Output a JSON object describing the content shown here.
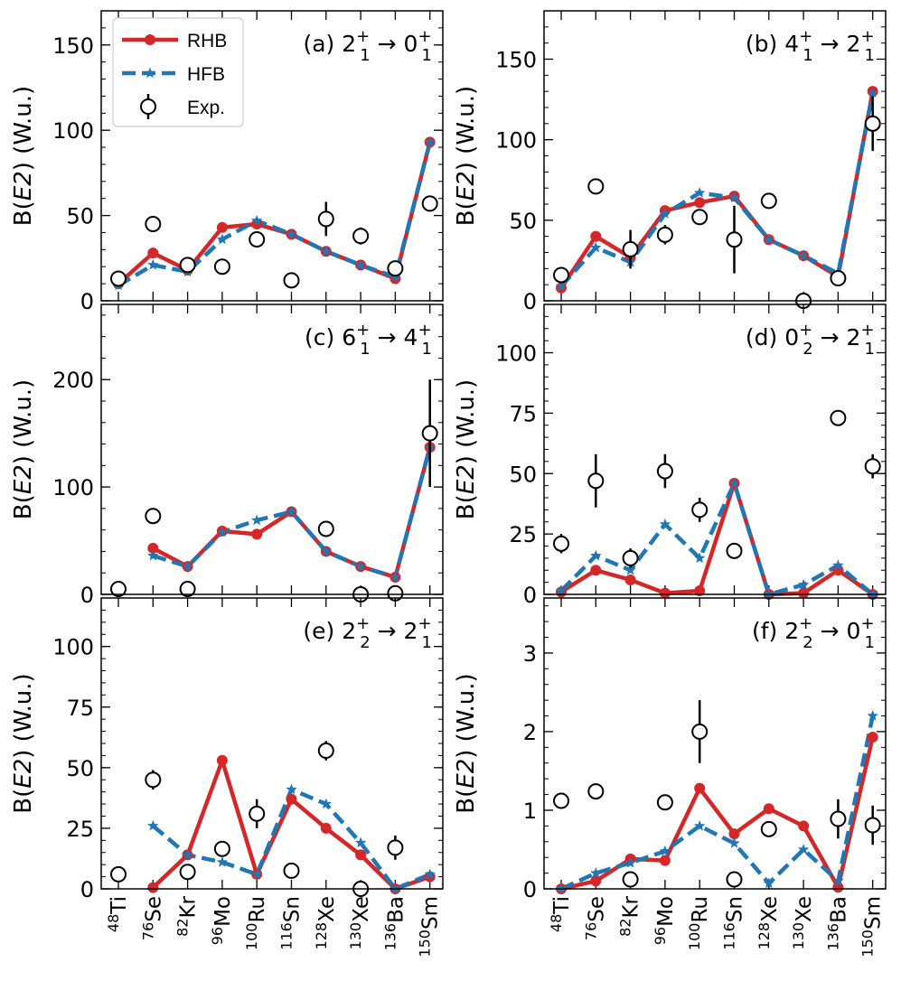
{
  "colors": {
    "rhb": "#d62728",
    "hfb": "#1f77b4",
    "exp": "#000000"
  },
  "legend": {
    "rhb": "RHB",
    "hfb": "HFB",
    "exp": "Exp."
  },
  "nuclei": [
    {
      "mass": "48",
      "symbol": "Ti"
    },
    {
      "mass": "76",
      "symbol": "Se"
    },
    {
      "mass": "82",
      "symbol": "Kr"
    },
    {
      "mass": "96",
      "symbol": "Mo"
    },
    {
      "mass": "100",
      "symbol": "Ru"
    },
    {
      "mass": "116",
      "symbol": "Sn"
    },
    {
      "mass": "128",
      "symbol": "Xe"
    },
    {
      "mass": "130",
      "symbol": "Xe"
    },
    {
      "mass": "136",
      "symbol": "Ba"
    },
    {
      "mass": "150",
      "symbol": "Sm"
    }
  ],
  "ylabel": {
    "prefix": "B(",
    "italic": "E2",
    "suffix": ") (W.u.)"
  },
  "arrow": "→",
  "chart_data": [
    {
      "type": "line",
      "label": "(a)",
      "trans": {
        "j1": "2",
        "sub1": "1",
        "sup1": "+",
        "j2": "0",
        "sub2": "1",
        "sup2": "+"
      },
      "ylim": [
        0,
        170
      ],
      "yticks": [
        0,
        50,
        100,
        150
      ],
      "series": [
        {
          "name": "RHB",
          "values": [
            10,
            28,
            18,
            43,
            45,
            39,
            29,
            21,
            13,
            93
          ]
        },
        {
          "name": "HFB",
          "values": [
            9,
            21,
            17,
            36,
            47,
            39,
            29,
            21,
            14,
            93
          ]
        }
      ],
      "exp": {
        "values": [
          13,
          45,
          21,
          20,
          36,
          12,
          48,
          38,
          19,
          57
        ],
        "err": [
          2,
          3,
          2,
          2,
          2,
          2,
          10,
          5,
          2,
          2
        ]
      }
    },
    {
      "type": "line",
      "label": "(b)",
      "trans": {
        "j1": "4",
        "sub1": "1",
        "sup1": "+",
        "j2": "2",
        "sub2": "1",
        "sup2": "+"
      },
      "ylim": [
        0,
        180
      ],
      "yticks": [
        0,
        50,
        100,
        150
      ],
      "series": [
        {
          "name": "RHB",
          "values": [
            8,
            40,
            27,
            56,
            61,
            65,
            38,
            28,
            15,
            130
          ]
        },
        {
          "name": "HFB",
          "values": [
            9,
            33,
            24,
            54,
            67,
            64,
            38,
            28,
            17,
            129
          ]
        }
      ],
      "exp": {
        "values": [
          16,
          71,
          32,
          41,
          52,
          38,
          62,
          0,
          14,
          110
        ],
        "err": [
          2,
          2,
          12,
          6,
          3,
          21,
          2,
          1,
          3,
          17
        ]
      }
    },
    {
      "type": "line",
      "label": "(c)",
      "trans": {
        "j1": "6",
        "sub1": "1",
        "sup1": "+",
        "j2": "4",
        "sub2": "1",
        "sup2": "+"
      },
      "ylim": [
        0,
        270
      ],
      "yticks": [
        0,
        100,
        200
      ],
      "series": [
        {
          "name": "RHB",
          "values": [
            null,
            43,
            26,
            59,
            56,
            77,
            40,
            26,
            16,
            137
          ]
        },
        {
          "name": "HFB",
          "values": [
            null,
            36,
            26,
            58,
            69,
            77,
            40,
            26,
            16,
            137
          ]
        }
      ],
      "exp": {
        "values": [
          5,
          73,
          5,
          null,
          null,
          null,
          61,
          0,
          1,
          150
        ],
        "err": [
          1,
          4,
          1,
          null,
          null,
          null,
          4,
          1,
          1,
          50
        ]
      }
    },
    {
      "type": "line",
      "label": "(d)",
      "trans": {
        "j1": "0",
        "sub1": "2",
        "sup1": "+",
        "j2": "2",
        "sub2": "1",
        "sup2": "+"
      },
      "ylim": [
        0,
        120
      ],
      "yticks": [
        0,
        25,
        50,
        75,
        100
      ],
      "series": [
        {
          "name": "RHB",
          "values": [
            1,
            10,
            6,
            0.5,
            1.5,
            46,
            0,
            0.5,
            10,
            0
          ]
        },
        {
          "name": "HFB",
          "values": [
            1.5,
            16,
            10,
            29,
            15,
            46,
            0,
            4,
            12,
            0
          ]
        }
      ],
      "exp": {
        "values": [
          21,
          47,
          15,
          51,
          35,
          18,
          null,
          null,
          73,
          53
        ],
        "err": [
          4,
          11,
          4,
          7,
          5,
          2,
          null,
          null,
          2,
          5
        ]
      }
    },
    {
      "type": "line",
      "label": "(e)",
      "trans": {
        "j1": "2",
        "sub1": "2",
        "sup1": "+",
        "j2": "2",
        "sub2": "1",
        "sup2": "+"
      },
      "ylim": [
        0,
        120
      ],
      "yticks": [
        0,
        25,
        50,
        75,
        100
      ],
      "series": [
        {
          "name": "RHB",
          "values": [
            null,
            0.5,
            14,
            53,
            6,
            37,
            25,
            14,
            0,
            5
          ]
        },
        {
          "name": "HFB",
          "values": [
            null,
            26,
            14,
            11,
            6,
            41,
            35,
            19,
            0,
            6
          ]
        }
      ],
      "exp": {
        "values": [
          6,
          45,
          7,
          16.5,
          31,
          7.5,
          57,
          0,
          17,
          null
        ],
        "err": [
          1,
          4,
          1,
          2,
          6,
          1,
          4,
          1,
          5,
          null
        ]
      }
    },
    {
      "type": "line",
      "label": "(f)",
      "trans": {
        "j1": "2",
        "sub1": "2",
        "sup1": "+",
        "j2": "0",
        "sub2": "1",
        "sup2": "+"
      },
      "ylim": [
        0,
        3.7
      ],
      "yticks": [
        0,
        1,
        2,
        3
      ],
      "series": [
        {
          "name": "RHB",
          "values": [
            0,
            0.1,
            0.38,
            0.36,
            1.28,
            0.7,
            1.02,
            0.8,
            0.02,
            1.93
          ]
        },
        {
          "name": "HFB",
          "values": [
            0,
            0.2,
            0.33,
            0.48,
            0.8,
            0.58,
            0.07,
            0.5,
            0.1,
            2.2
          ]
        }
      ],
      "exp": {
        "values": [
          1.12,
          1.24,
          0.12,
          1.1,
          2.0,
          0.12,
          0.76,
          null,
          0.89,
          0.81
        ],
        "err": [
          0.05,
          0.1,
          0.03,
          0.05,
          0.4,
          0.02,
          0.05,
          null,
          0.25,
          0.25
        ]
      }
    }
  ]
}
